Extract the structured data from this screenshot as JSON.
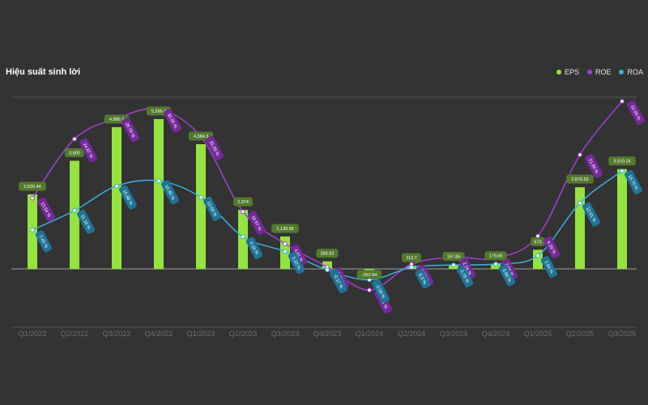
{
  "chart_data": {
    "type": "bar+line",
    "title": "Hiệu suất sinh lời",
    "categories": [
      "Q1/2022",
      "Q2/2022",
      "Q3/2022",
      "Q4/2022",
      "Q1/2023",
      "Q2/2023",
      "Q3/2023",
      "Q4/2023",
      "Q1/2024",
      "Q2/2024",
      "Q3/2024",
      "Q4/2024",
      "Q1/2025",
      "Q2/2025",
      "Q3/2025"
    ],
    "legend_position": "top-right",
    "series": [
      {
        "name": "EPS",
        "kind": "bar",
        "color": "#94e33f",
        "values": [
          2620.44,
          3800,
          4980.7,
          5266.6,
          4384.3,
          2074,
          1139.95,
          266.83,
          -252.54,
          113.7,
          157.85,
          179.66,
          673,
          2870.55,
          3510.24
        ],
        "labels": [
          "2,620.44",
          "3,800",
          "4,980.7",
          "5,266.6",
          "4,384.3",
          "2,074",
          "1,139.95",
          "266.83",
          "-252.54",
          "113.7",
          "157.85",
          "179.66",
          "673",
          "2,870.55",
          "3,510.24"
        ]
      },
      {
        "name": "ROE",
        "kind": "line",
        "color": "#a43fd4",
        "values": [
          13.54,
          24.87,
          28.79,
          30.55,
          25.29,
          10.97,
          4.81,
          0.38,
          -4.05,
          0.89,
          2.24,
          2.06,
          6.29,
          21.86,
          32.09
        ],
        "labels": [
          "13.54 %",
          "24.87 %",
          "28.79 %",
          "30.55 %",
          "25.29 %",
          "10.97 %",
          "4.81 %",
          "0.38 %",
          "-4.05 %",
          "0.89 %",
          "2.24 %",
          "2.06 %",
          "6.29 %",
          "21.86 %",
          "32.09 %"
        ]
      },
      {
        "name": "ROA",
        "kind": "line",
        "color": "#3ab0dc",
        "values": [
          7.45,
          11.18,
          15.88,
          16.85,
          13.68,
          6.16,
          3.33,
          -0.17,
          -2.08,
          0.3,
          0.75,
          0.95,
          2.54,
          12.61,
          18.76
        ],
        "labels": [
          "7.45 %",
          "11.18 %",
          "15.88 %",
          "16.85 %",
          "13.68 %",
          "6.16 %",
          "3.33 %",
          "-0.17 %",
          "-2.08 %",
          "0.3 %",
          "0.75 %",
          "0.95 %",
          "2.54 %",
          "12.61 %",
          "18.76 %"
        ]
      }
    ]
  }
}
